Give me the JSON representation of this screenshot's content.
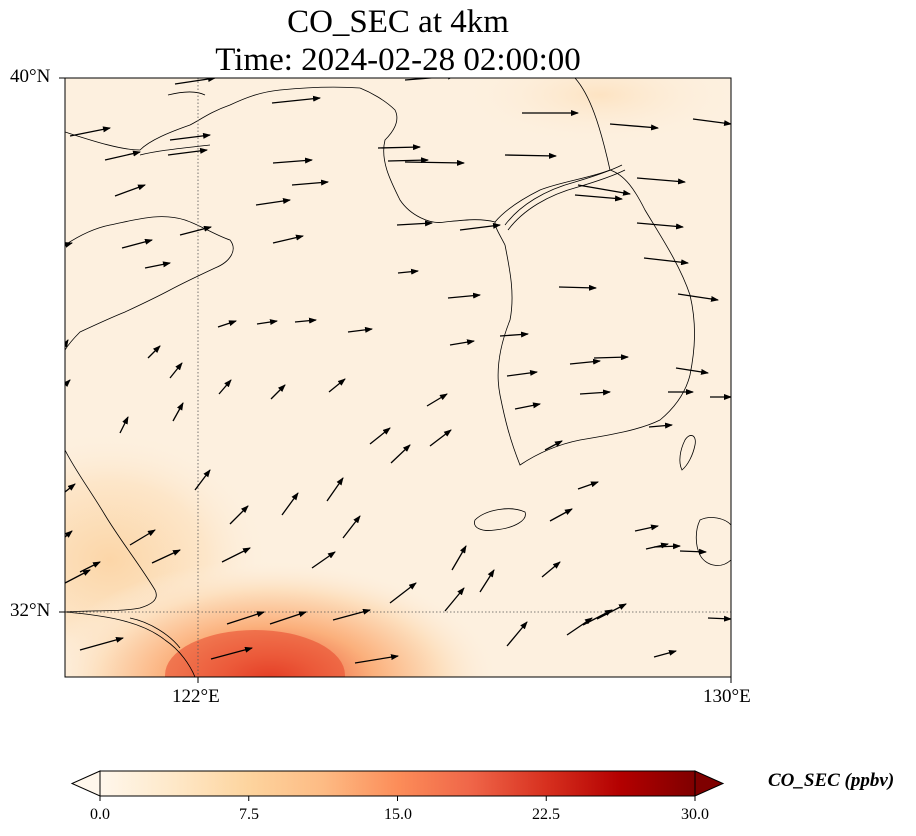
{
  "title": {
    "line1": "CO_SEC at 4km",
    "line2": "Time: 2024-02-28 02:00:00"
  },
  "map": {
    "lat_labels": [
      "40°N",
      "32°N"
    ],
    "lon_labels": [
      "122°E",
      "130°E"
    ],
    "lon_range": [
      120,
      130
    ],
    "lat_range": [
      31,
      40
    ],
    "gridlines": {
      "lon": [
        122
      ],
      "lat": [
        32
      ],
      "style": "dotted"
    }
  },
  "colorbar": {
    "label": "CO_SEC (ppbv)",
    "ticks": [
      "0.0",
      "7.5",
      "15.0",
      "22.5",
      "30.0"
    ],
    "range": [
      0,
      30
    ],
    "colormap": "OrRd",
    "extend": "both",
    "colors": [
      "#fff7ec",
      "#fee8c8",
      "#fdd49e",
      "#fdbb84",
      "#fc8d59",
      "#ef6548",
      "#d7301f",
      "#b30000",
      "#7f0000"
    ]
  },
  "field": {
    "background_color": "#fdf0df",
    "high_region": "south-west corner near 122.5°E 31°N",
    "peak_color": "#e0341f"
  },
  "wind_vectors": {
    "description": "",
    "dominant_direction": "west-to-east"
  }
}
